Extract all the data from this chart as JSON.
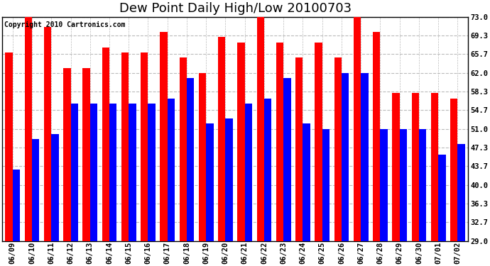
{
  "title": "Dew Point Daily High/Low 20100703",
  "copyright": "Copyright 2010 Cartronics.com",
  "dates": [
    "06/09",
    "06/10",
    "06/11",
    "06/12",
    "06/13",
    "06/14",
    "06/15",
    "06/16",
    "06/17",
    "06/18",
    "06/19",
    "06/20",
    "06/21",
    "06/22",
    "06/23",
    "06/24",
    "06/25",
    "06/26",
    "06/27",
    "06/28",
    "06/29",
    "06/30",
    "07/01",
    "07/02"
  ],
  "highs": [
    66,
    73,
    71,
    63,
    63,
    67,
    66,
    66,
    70,
    65,
    62,
    69,
    68,
    73,
    68,
    65,
    68,
    65,
    73,
    70,
    58,
    58,
    58,
    57
  ],
  "lows": [
    43,
    49,
    50,
    56,
    56,
    56,
    56,
    56,
    57,
    61,
    52,
    53,
    56,
    57,
    61,
    52,
    51,
    62,
    62,
    51,
    51,
    51,
    46,
    48
  ],
  "high_color": "#ff0000",
  "low_color": "#0000ff",
  "bg_color": "#ffffff",
  "grid_color": "#aaaaaa",
  "ymin": 29.0,
  "ymax": 73.0,
  "yticks": [
    29.0,
    32.7,
    36.3,
    40.0,
    43.7,
    47.3,
    51.0,
    54.7,
    58.3,
    62.0,
    65.7,
    69.3,
    73.0
  ],
  "title_fontsize": 13,
  "tick_fontsize": 7.5,
  "copyright_fontsize": 7
}
